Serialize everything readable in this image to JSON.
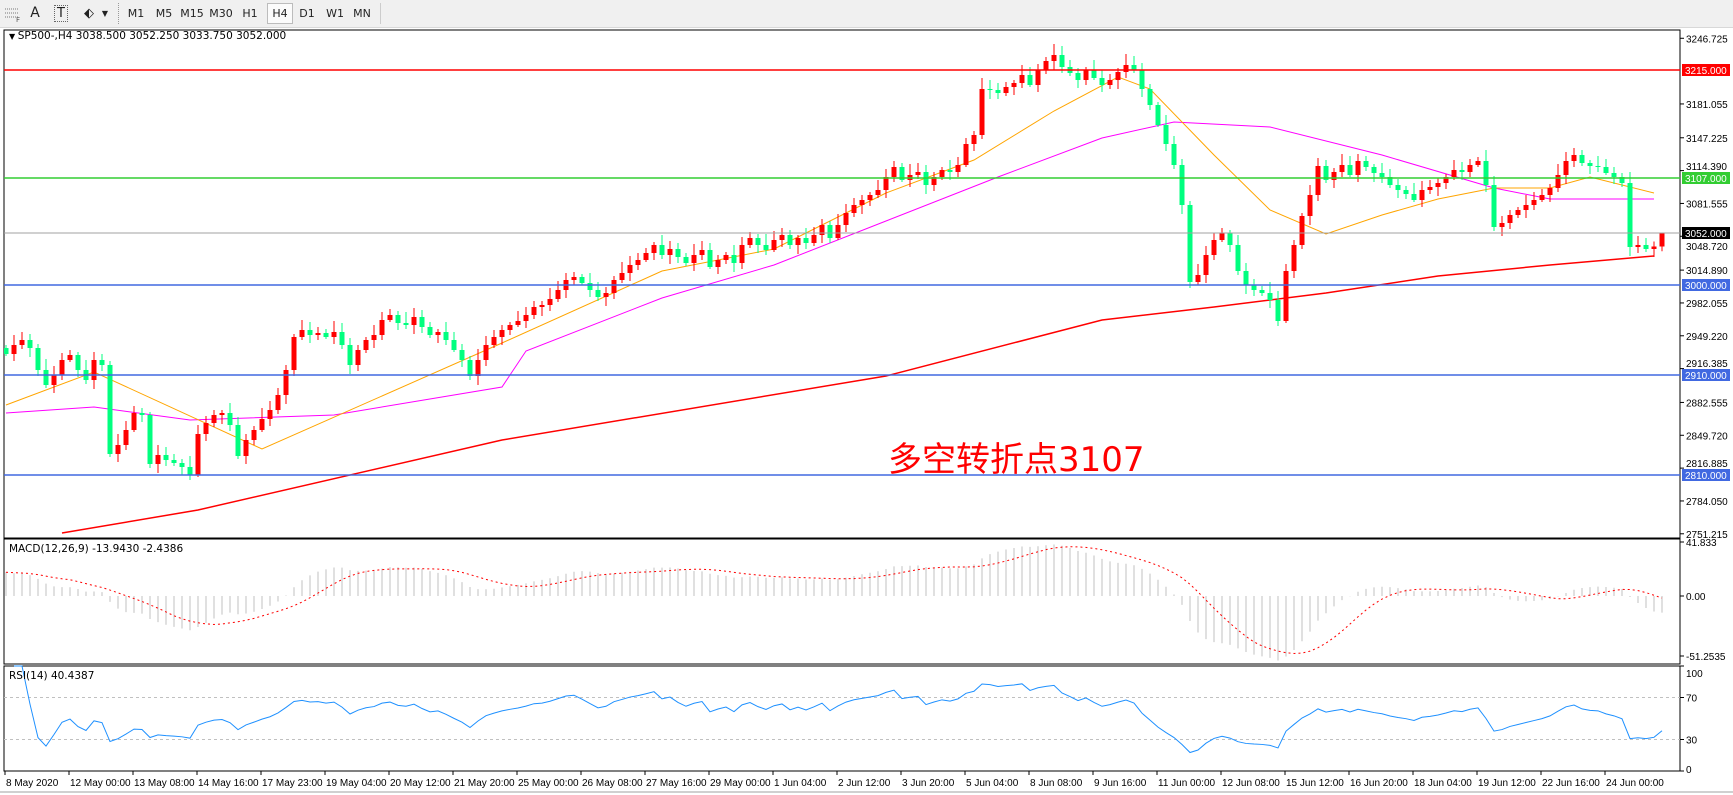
{
  "toolbar": {
    "tools": [
      {
        "icon": "period-separator-icon"
      },
      {
        "icon": "text-icon",
        "label": "A"
      },
      {
        "icon": "text-label-icon",
        "label": "T"
      },
      {
        "icon": "shapes-icon"
      },
      {
        "icon": "chevron-down-icon"
      }
    ],
    "timeframes": [
      "M1",
      "M5",
      "M15",
      "M30",
      "H1",
      "H4",
      "D1",
      "W1",
      "MN"
    ],
    "active_timeframe": "H4"
  },
  "chart": {
    "header": "SP500-,H4  3038.500 3052.250 3033.750 3052.000",
    "price_axis": [
      "3246.725",
      "3181.055",
      "3147.225",
      "3114.390",
      "3081.555",
      "3048.720",
      "3014.890",
      "2982.055",
      "2949.220",
      "2916.385",
      "2882.555",
      "2849.720",
      "2816.885",
      "2784.050",
      "2751.215"
    ],
    "levels": [
      {
        "label": "3215.000",
        "color": "#ff0000",
        "bg": "#ff0000"
      },
      {
        "label": "3107.000",
        "color": "#32cd32",
        "bg": "#32cd32"
      },
      {
        "label": "3052.000",
        "color": "#a0a0a0",
        "bg": "#000000"
      },
      {
        "label": "3000.000",
        "color": "#4169e1",
        "bg": "#4169e1"
      },
      {
        "label": "2910.000",
        "color": "#4169e1",
        "bg": "#4169e1"
      },
      {
        "label": "2810.000",
        "color": "#4169e1",
        "bg": "#4169e1"
      }
    ],
    "annotation": "多空转折点3107",
    "macd": {
      "title": "MACD(12,26,9) -13.9430 -2.4386",
      "axis": [
        "41.833",
        "0.00",
        "-51.2535"
      ]
    },
    "rsi": {
      "title": "RSI(14) 40.4387",
      "axis": [
        "100",
        "70",
        "30",
        "0"
      ]
    },
    "time_axis": [
      "8 May 2020",
      "12 May 00:00",
      "13 May 08:00",
      "14 May 16:00",
      "17 May 23:00",
      "19 May 04:00",
      "20 May 12:00",
      "21 May 20:00",
      "25 May 00:00",
      "26 May 08:00",
      "27 May 16:00",
      "29 May 00:00",
      "1 Jun 04:00",
      "2 Jun 12:00",
      "3 Jun 20:00",
      "5 Jun 04:00",
      "8 Jun 08:00",
      "9 Jun 16:00",
      "11 Jun 00:00",
      "12 Jun 08:00",
      "15 Jun 12:00",
      "16 Jun 20:00",
      "18 Jun 04:00",
      "19 Jun 12:00",
      "22 Jun 16:00",
      "24 Jun 00:00"
    ]
  },
  "chart_data": {
    "type": "candlestick",
    "symbol": "SP500-",
    "timeframe": "H4",
    "ylim": [
      2751.215,
      3246.725
    ],
    "colors": {
      "up": "#ff0000",
      "down": "#00ff7f",
      "ma_fast": "#ffa500",
      "ma_mid": "#ff00ff",
      "ma_slow": "#ff0000",
      "macd_hist": "#c0c0c0",
      "macd_signal": "#ff0000",
      "rsi": "#1e90ff"
    },
    "last_bar": {
      "open": 3038.5,
      "high": 3052.25,
      "low": 3033.75,
      "close": 3052.0
    },
    "close": [
      2931,
      2940,
      2945,
      2937,
      2915,
      2900,
      2910,
      2925,
      2930,
      2915,
      2905,
      2925,
      2920,
      2831,
      2840,
      2855,
      2872,
      2870,
      2821,
      2830,
      2825,
      2822,
      2818,
      2810,
      2851,
      2862,
      2870,
      2872,
      2860,
      2829,
      2845,
      2855,
      2866,
      2875,
      2890,
      2915,
      2948,
      2955,
      2950,
      2952,
      2948,
      2953,
      2940,
      2920,
      2935,
      2945,
      2950,
      2965,
      2970,
      2962,
      2960,
      2968,
      2958,
      2950,
      2953,
      2945,
      2935,
      2925,
      2909,
      2925,
      2940,
      2948,
      2955,
      2960,
      2964,
      2970,
      2978,
      2980,
      2986,
      2995,
      3005,
      3008,
      3002,
      2995,
      2988,
      2992,
      3005,
      3012,
      3020,
      3025,
      3032,
      3040,
      3030,
      3036,
      3028,
      3022,
      3030,
      3035,
      3018,
      3025,
      3030,
      3022,
      3040,
      3047,
      3040,
      3035,
      3045,
      3050,
      3040,
      3047,
      3042,
      3050,
      3060,
      3047,
      3060,
      3072,
      3080,
      3085,
      3090,
      3095,
      3108,
      3118,
      3105,
      3110,
      3113,
      3100,
      3108,
      3115,
      3113,
      3120,
      3141,
      3150,
      3196,
      3195,
      3192,
      3198,
      3202,
      3210,
      3200,
      3215,
      3224,
      3230,
      3218,
      3212,
      3205,
      3215,
      3207,
      3200,
      3205,
      3213,
      3220,
      3215,
      3196,
      3180,
      3160,
      3141,
      3120,
      3080,
      3003,
      3010,
      3030,
      3045,
      3052,
      3040,
      3014,
      3000,
      2995,
      2992,
      2985,
      2964,
      3014,
      3040,
      3069,
      3090,
      3119,
      3105,
      3113,
      3120,
      3110,
      3124,
      3118,
      3112,
      3108,
      3100,
      3095,
      3091,
      3085,
      3095,
      3098,
      3102,
      3108,
      3115,
      3113,
      3120,
      3124,
      3100,
      3058,
      3062,
      3070,
      3075,
      3080,
      3085,
      3090,
      3097,
      3110,
      3124,
      3130,
      3122,
      3119,
      3118,
      3112,
      3108,
      3102,
      3038,
      3040,
      3036,
      3038.5,
      3052
    ],
    "ma_fast": [
      [
        0,
        2880
      ],
      [
        11,
        2913
      ],
      [
        32,
        2836
      ],
      [
        62,
        2942
      ],
      [
        82,
        3014
      ],
      [
        96,
        3036
      ],
      [
        110,
        3092
      ],
      [
        121,
        3125
      ],
      [
        131,
        3174
      ],
      [
        139,
        3208
      ],
      [
        143,
        3196
      ],
      [
        151,
        3130
      ],
      [
        158,
        3075
      ],
      [
        165,
        3051
      ],
      [
        172,
        3070
      ],
      [
        179,
        3086
      ],
      [
        186,
        3097
      ],
      [
        193,
        3097
      ],
      [
        198,
        3108
      ],
      [
        206,
        3092
      ]
    ],
    "ma_mid": [
      [
        0,
        2872
      ],
      [
        11,
        2878
      ],
      [
        23,
        2865
      ],
      [
        41,
        2870
      ],
      [
        62,
        2898
      ],
      [
        65,
        2934
      ],
      [
        82,
        2987
      ],
      [
        96,
        3020
      ],
      [
        110,
        3064
      ],
      [
        124,
        3108
      ],
      [
        137,
        3147
      ],
      [
        146,
        3163
      ],
      [
        158,
        3158
      ],
      [
        172,
        3130
      ],
      [
        186,
        3097
      ],
      [
        193,
        3086
      ],
      [
        206,
        3086
      ]
    ],
    "ma_slow": [
      [
        7,
        2752
      ],
      [
        24,
        2775
      ],
      [
        62,
        2845
      ],
      [
        110,
        2909
      ],
      [
        137,
        2965
      ],
      [
        151,
        2978
      ],
      [
        165,
        2992
      ],
      [
        179,
        3009
      ],
      [
        193,
        3020
      ],
      [
        206,
        3029
      ]
    ],
    "macd_params": [
      12,
      26,
      9
    ],
    "rsi_period": 14,
    "rsi_levels": [
      30,
      70
    ]
  }
}
